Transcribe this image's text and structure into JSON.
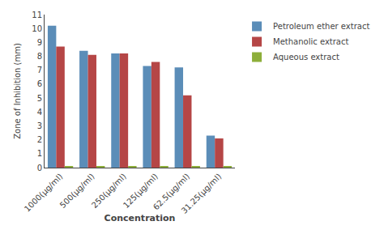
{
  "chart_data": {
    "type": "bar",
    "categories": [
      "1000(μg/ml)",
      "500(μg/ml)",
      "250(μg/ml)",
      "125(μg/ml)",
      "62.5(μg/ml)",
      "31.25(μg/ml)"
    ],
    "series": [
      {
        "name": "Petroleum ether extract",
        "color": "#5B8DB8",
        "values": [
          10.2,
          8.4,
          8.2,
          7.3,
          7.2,
          2.3
        ]
      },
      {
        "name": "Methanolic extract",
        "color": "#B54646",
        "values": [
          8.7,
          8.1,
          8.2,
          7.6,
          5.2,
          2.1
        ]
      },
      {
        "name": "Aqueous extract",
        "color": "#8DAE3A",
        "values": [
          0.1,
          0.1,
          0.1,
          0.1,
          0.1,
          0.1
        ]
      }
    ],
    "xlabel": "Concentration",
    "ylabel": "Zone of Inhibition (mm)",
    "ylim": [
      0,
      11
    ],
    "yticks": [
      0,
      1,
      2,
      3,
      4,
      5,
      6,
      7,
      8,
      9,
      10,
      11
    ],
    "grid": false,
    "legend": "right"
  }
}
